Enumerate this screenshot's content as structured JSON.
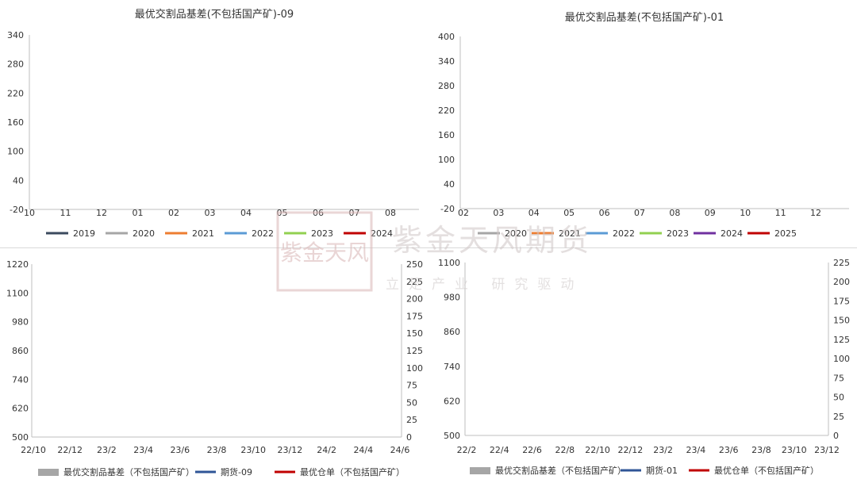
{
  "charts": {
    "top_left": {
      "title": "最优交割品基差(不包括国产矿)-09",
      "y_ticks": [
        "340",
        "280",
        "220",
        "160",
        "100",
        "40",
        "-20"
      ],
      "x_ticks": [
        "10",
        "11",
        "12",
        "01",
        "02",
        "03",
        "04",
        "05",
        "06",
        "07",
        "08"
      ],
      "legend": [
        {
          "name": "2019",
          "color": "#3b4a5e"
        },
        {
          "name": "2020",
          "color": "#a6a6a6"
        },
        {
          "name": "2021",
          "color": "#ed7d31"
        },
        {
          "name": "2022",
          "color": "#5b9bd5"
        },
        {
          "name": "2023",
          "color": "#92d050"
        },
        {
          "name": "2024",
          "color": "#c00000"
        }
      ]
    },
    "top_right": {
      "title": "最优交割品基差(不包括国产矿)-01",
      "y_ticks": [
        "400",
        "340",
        "280",
        "220",
        "160",
        "100",
        "40",
        "-20"
      ],
      "x_ticks": [
        "02",
        "03",
        "04",
        "05",
        "06",
        "07",
        "08",
        "09",
        "10",
        "11",
        "12"
      ],
      "legend": [
        {
          "name": "2020",
          "color": "#a6a6a6"
        },
        {
          "name": "2021",
          "color": "#ed7d31"
        },
        {
          "name": "2022",
          "color": "#5b9bd5"
        },
        {
          "name": "2023",
          "color": "#92d050"
        },
        {
          "name": "2024",
          "color": "#7030a0"
        },
        {
          "name": "2025",
          "color": "#c00000"
        }
      ]
    },
    "bottom_left": {
      "y_left_ticks": [
        "1220",
        "1100",
        "980",
        "860",
        "740",
        "620",
        "500"
      ],
      "y_right_ticks": [
        "250",
        "225",
        "200",
        "175",
        "150",
        "125",
        "100",
        "75",
        "50",
        "25",
        "0"
      ],
      "x_ticks": [
        "22/10",
        "22/12",
        "23/2",
        "23/4",
        "23/6",
        "23/8",
        "23/10",
        "23/12",
        "24/2",
        "24/4",
        "24/6"
      ],
      "legend": [
        {
          "name": "最优交割品基差（不包括国产矿）",
          "color": "#a6a6a6",
          "kind": "area"
        },
        {
          "name": "期货-09",
          "color": "#2f5597",
          "kind": "line"
        },
        {
          "name": "最优仓单（不包括国产矿）",
          "color": "#c00000",
          "kind": "line"
        }
      ]
    },
    "bottom_right": {
      "y_left_ticks": [
        "1100",
        "980",
        "860",
        "740",
        "620",
        "500"
      ],
      "y_right_ticks": [
        "225",
        "200",
        "175",
        "150",
        "125",
        "100",
        "75",
        "50",
        "25",
        "0"
      ],
      "x_ticks": [
        "22/2",
        "22/4",
        "22/6",
        "22/8",
        "22/10",
        "22/12",
        "23/2",
        "23/4",
        "23/6",
        "23/8",
        "23/10",
        "23/12"
      ],
      "legend": [
        {
          "name": "最优交割品基差（不包括国产矿）",
          "color": "#a6a6a6",
          "kind": "area"
        },
        {
          "name": "期货-01",
          "color": "#2f5597",
          "kind": "line"
        },
        {
          "name": "最优仓单（不包括国产矿）",
          "color": "#c00000",
          "kind": "line"
        }
      ]
    }
  },
  "watermark": {
    "seal": "紫金天风",
    "brand": "紫金天风期货",
    "slogan": "立足产业 研究驱动"
  }
}
